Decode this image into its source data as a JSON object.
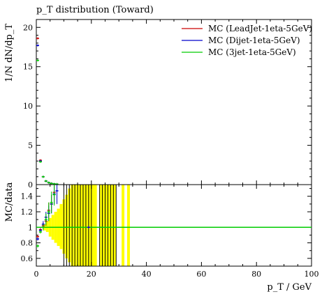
{
  "chart_data": [
    {
      "type": "scatter",
      "title": "p_T distribution (Toward)",
      "ylabel": "1/N dN/dp_T",
      "xlim": [
        0,
        100
      ],
      "ylim": [
        0,
        21
      ],
      "yticks": [
        0,
        5,
        10,
        15,
        20
      ],
      "legend_position": "top-right",
      "series": [
        {
          "name": "MC (LeadJet-1eta-5GeV)",
          "color": "#cc0000",
          "x": [
            0.5,
            1.5,
            2.5,
            3.5,
            4.5,
            5.5,
            6.5,
            7.5
          ],
          "y": [
            18.6,
            3.1,
            1.0,
            0.45,
            0.25,
            0.15,
            0.09,
            0.06
          ]
        },
        {
          "name": "MC (Dijet-1eta-5GeV)",
          "color": "#0000cc",
          "x": [
            0.5,
            1.5,
            2.5,
            3.5,
            4.5,
            5.5,
            6.5,
            7.5
          ],
          "y": [
            17.7,
            3.0,
            1.0,
            0.45,
            0.25,
            0.15,
            0.09,
            0.06
          ]
        },
        {
          "name": "MC (3jet-1eta-5GeV)",
          "color": "#00cc00",
          "x": [
            0.5,
            1.5,
            2.5,
            3.5,
            4.5,
            5.5,
            6.5,
            7.5
          ],
          "y": [
            15.8,
            2.9,
            1.0,
            0.45,
            0.25,
            0.15,
            0.09,
            0.06
          ]
        }
      ]
    },
    {
      "type": "scatter",
      "title": "",
      "xlabel": "p_T / GeV",
      "ylabel": "MC/data",
      "xlim": [
        0,
        100
      ],
      "ylim": [
        0.5,
        1.55
      ],
      "xticks": [
        0,
        20,
        40,
        60,
        80,
        100
      ],
      "yticks": [
        0.6,
        0.8,
        1,
        1.2,
        1.4
      ],
      "reference_line": 1,
      "uncertainty_band_color": "#ffff00",
      "uncertainty_band": [
        {
          "x0": 2.5,
          "x1": 3.5,
          "lo": 0.96,
          "hi": 1.04
        },
        {
          "x0": 3.5,
          "x1": 4.5,
          "lo": 0.94,
          "hi": 1.08
        },
        {
          "x0": 4.5,
          "x1": 5.5,
          "lo": 0.88,
          "hi": 1.12
        },
        {
          "x0": 5.5,
          "x1": 6.5,
          "lo": 0.84,
          "hi": 1.16
        },
        {
          "x0": 6.5,
          "x1": 7.5,
          "lo": 0.8,
          "hi": 1.2
        },
        {
          "x0": 7.5,
          "x1": 8.5,
          "lo": 0.76,
          "hi": 1.24
        },
        {
          "x0": 8.5,
          "x1": 9.5,
          "lo": 0.72,
          "hi": 1.3
        },
        {
          "x0": 9.5,
          "x1": 10.5,
          "lo": 0.66,
          "hi": 1.36
        },
        {
          "x0": 10.5,
          "x1": 11.5,
          "lo": 0.6,
          "hi": 1.42
        },
        {
          "x0": 11.5,
          "x1": 12.5,
          "lo": 0.55,
          "hi": 1.5
        },
        {
          "x0": 12.5,
          "x1": 13.5,
          "lo": 0.5,
          "hi": 1.55
        },
        {
          "x0": 13.5,
          "x1": 14.5,
          "lo": 0.5,
          "hi": 1.55
        },
        {
          "x0": 14.5,
          "x1": 16,
          "lo": 0.5,
          "hi": 1.55
        },
        {
          "x0": 16,
          "x1": 18,
          "lo": 0.5,
          "hi": 1.55
        },
        {
          "x0": 18,
          "x1": 20,
          "lo": 0.5,
          "hi": 1.55
        },
        {
          "x0": 20,
          "x1": 22,
          "lo": 0.5,
          "hi": 1.55
        },
        {
          "x0": 23,
          "x1": 25,
          "lo": 0.5,
          "hi": 1.55
        },
        {
          "x0": 25,
          "x1": 27,
          "lo": 0.5,
          "hi": 1.55
        },
        {
          "x0": 27,
          "x1": 29,
          "lo": 0.5,
          "hi": 1.55
        },
        {
          "x0": 31,
          "x1": 32,
          "lo": 0.5,
          "hi": 1.55
        },
        {
          "x0": 33,
          "x1": 34,
          "lo": 0.5,
          "hi": 1.55
        }
      ],
      "dark_lines_x": [
        10,
        11,
        12,
        13,
        14,
        15,
        16,
        17,
        18,
        19,
        20,
        23,
        24,
        25,
        26,
        27,
        28,
        29
      ],
      "series": [
        {
          "name": "MC (LeadJet-1eta-5GeV)",
          "color": "#cc0000",
          "points": [
            {
              "x": 0.5,
              "y": 0.88,
              "lo": 0.86,
              "hi": 0.9
            },
            {
              "x": 1.5,
              "y": 0.97,
              "lo": 0.95,
              "hi": 0.99
            },
            {
              "x": 2.5,
              "y": 1.02,
              "lo": 0.98,
              "hi": 1.06
            },
            {
              "x": 3.5,
              "y": 1.08,
              "lo": 1.02,
              "hi": 1.14
            },
            {
              "x": 4.5,
              "y": 1.22,
              "lo": 1.12,
              "hi": 1.32
            },
            {
              "x": 5.5,
              "y": 1.3,
              "lo": 1.18,
              "hi": 1.42
            },
            {
              "x": 6.5,
              "y": 1.45,
              "lo": 1.3,
              "hi": 1.55
            }
          ]
        },
        {
          "name": "MC (Dijet-1eta-5GeV)",
          "color": "#0000cc",
          "points": [
            {
              "x": 0.5,
              "y": 0.85,
              "lo": 0.83,
              "hi": 0.87
            },
            {
              "x": 1.5,
              "y": 0.96,
              "lo": 0.94,
              "hi": 0.98
            },
            {
              "x": 2.5,
              "y": 1.04,
              "lo": 1.0,
              "hi": 1.08
            },
            {
              "x": 3.5,
              "y": 1.13,
              "lo": 1.06,
              "hi": 1.2
            },
            {
              "x": 4.5,
              "y": 1.18,
              "lo": 1.08,
              "hi": 1.28
            },
            {
              "x": 5.5,
              "y": 1.3,
              "lo": 1.18,
              "hi": 1.42
            },
            {
              "x": 6.5,
              "y": 1.43,
              "lo": 1.3,
              "hi": 1.55
            },
            {
              "x": 7.5,
              "y": 1.47,
              "lo": 1.3,
              "hi": 1.55
            },
            {
              "x": 19,
              "y": 1.0,
              "lo": 0.98,
              "hi": 1.02
            }
          ]
        },
        {
          "name": "MC (3jet-1eta-5GeV)",
          "color": "#00cc00",
          "points": [
            {
              "x": 0.5,
              "y": 0.76,
              "lo": 0.74,
              "hi": 0.78
            },
            {
              "x": 1.5,
              "y": 0.94,
              "lo": 0.92,
              "hi": 0.96
            },
            {
              "x": 2.5,
              "y": 1.0,
              "lo": 0.96,
              "hi": 1.04
            },
            {
              "x": 3.5,
              "y": 1.1,
              "lo": 1.02,
              "hi": 1.18
            },
            {
              "x": 4.5,
              "y": 1.2,
              "lo": 1.08,
              "hi": 1.32
            },
            {
              "x": 5.5,
              "y": 1.32,
              "lo": 1.18,
              "hi": 1.46
            },
            {
              "x": 6.5,
              "y": 1.42,
              "lo": 1.28,
              "hi": 1.55
            }
          ]
        }
      ]
    }
  ]
}
